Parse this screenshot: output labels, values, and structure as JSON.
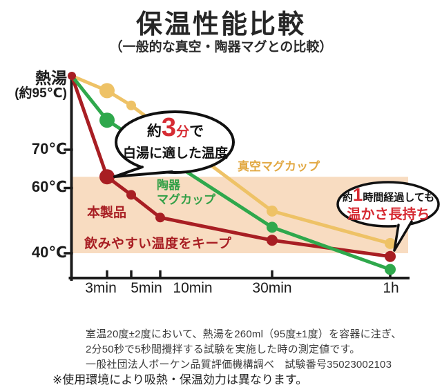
{
  "title": "保温性能比較",
  "subtitle": "（一般的な真空・陶器マグとの比較）",
  "y_axis": {
    "top_label_1": "熱湯",
    "top_label_2": "(約95℃)",
    "ticks": [
      "70℃",
      "60℃",
      "40℃"
    ]
  },
  "chart_data": {
    "type": "line",
    "x_labels": [
      "3min",
      "5min",
      "10min",
      "30min",
      "1h"
    ],
    "y_ticks": [
      70,
      60,
      40
    ],
    "y_start_label": "熱湯(約95℃)",
    "y_start_value": 95,
    "ylim": [
      33,
      95
    ],
    "grid": false,
    "band": {
      "label": "飲みやすい温度をキープ",
      "temp_range": [
        40,
        63
      ],
      "color": "#f8dcc1"
    },
    "series": [
      {
        "name": "真空マグカップ",
        "color": "#eec266",
        "points": [
          {
            "x": "start",
            "t": 95,
            "r": 0
          },
          {
            "x": "3min",
            "t": 90,
            "r": 11
          },
          {
            "x": "5min",
            "t": 85,
            "r": 7
          },
          {
            "x": "30min",
            "t": 53,
            "r": 8
          },
          {
            "x": "1h",
            "t": 43,
            "r": 8
          }
        ]
      },
      {
        "name": "本製品",
        "color": "#a81e23",
        "points": [
          {
            "x": "start",
            "t": 95,
            "r": 6
          },
          {
            "x": "3min",
            "t": 63,
            "r": 11
          },
          {
            "x": "5min",
            "t": 58,
            "r": 7
          },
          {
            "x": "10min",
            "t": 51,
            "r": 7
          },
          {
            "x": "30min",
            "t": 44,
            "r": 8
          },
          {
            "x": "1h",
            "t": 39,
            "r": 8
          }
        ]
      },
      {
        "name": "陶器マグカップ",
        "color": "#2fa84c",
        "points": [
          {
            "x": "start",
            "t": 95,
            "r": 0
          },
          {
            "x": "3min",
            "t": 80,
            "r": 11
          },
          {
            "x": "30min",
            "t": 48,
            "r": 8
          },
          {
            "x": "1h",
            "t": 35,
            "r": 8
          }
        ]
      }
    ],
    "annotations": [
      {
        "target": "3min",
        "text": "約3分で白湯に適した温度"
      },
      {
        "target": "1h",
        "text": "約1時間経過しても温かさ長持ち"
      }
    ]
  },
  "labels": {
    "vacuum": "真空マグカップ",
    "ceramic_line1": "陶器",
    "ceramic_line2": "マグカップ",
    "product": "本製品",
    "band_note": "飲みやすい温度をキープ"
  },
  "bubble1": {
    "prefix": "約",
    "big": "3",
    "unit": "分",
    "suffix": "で",
    "line2": "白湯に適した温度"
  },
  "bubble2": {
    "prefix": "約",
    "big": "1",
    "suffix": "時間経過しても",
    "line2": "温かさ長持ち"
  },
  "footer": {
    "lines": [
      "室温20度±2度において、熱湯を260ml（95度±1度）を容器に注ぎ、",
      "2分50秒で5秒間攪拌する試験を実施した時の測定値です。",
      "一般社団法人ボーケン品質評価機構調べ　試験番号35023002103"
    ],
    "note": "※使用環境により吸熱・保温効力は異なります。"
  }
}
